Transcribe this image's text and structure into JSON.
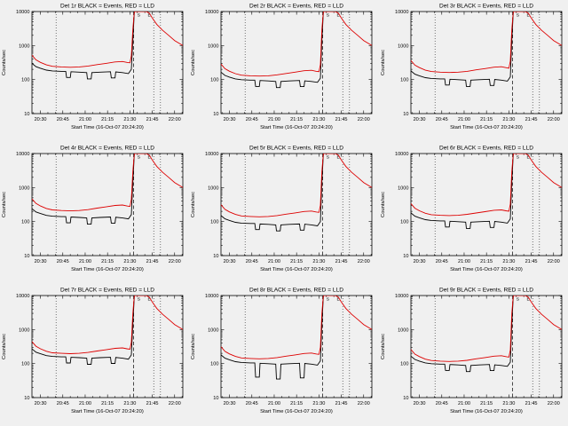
{
  "window": {
    "background": "#f0f0f0",
    "foreground": "#000000",
    "series_black": "#000000",
    "series_red": "#dd0000"
  },
  "chart_common": {
    "xlabel": "Start Time (16-Oct-07 20:24:20)",
    "ylabel": "Counts/sec",
    "xlim": [
      24.3,
      125.5
    ],
    "ylim": [
      10,
      10000
    ],
    "grid": false,
    "xticks": [
      {
        "t": 30,
        "label": "20:30"
      },
      {
        "t": 45,
        "label": "20:45"
      },
      {
        "t": 60,
        "label": "21:00"
      },
      {
        "t": 75,
        "label": "21:15"
      },
      {
        "t": 90,
        "label": "21:30"
      },
      {
        "t": 105,
        "label": "21:45"
      },
      {
        "t": 120,
        "label": "22:00"
      }
    ],
    "yticks": [
      {
        "v": 10,
        "label": "10"
      },
      {
        "v": 100,
        "label": "100"
      },
      {
        "v": 1000,
        "label": "1000"
      },
      {
        "v": 10000,
        "label": "10000"
      }
    ],
    "vlines": [
      {
        "t": 40.5,
        "style": "dotted"
      },
      {
        "t": 92.5,
        "style": "dashed"
      },
      {
        "t": 106,
        "style": "dotted"
      },
      {
        "t": 110.5,
        "style": "dotted"
      }
    ],
    "flags": [
      {
        "t": 96,
        "label": "S"
      },
      {
        "t": 103,
        "label": "E"
      }
    ],
    "x_events": [
      24.3,
      27,
      30,
      34,
      38,
      44,
      47,
      47.5,
      50,
      50.5,
      56,
      61,
      61.5,
      64,
      64.5,
      70,
      77,
      77.5,
      80,
      80.5,
      85,
      89,
      91,
      92,
      93,
      103
    ],
    "x_lld": [
      24.3,
      27,
      30,
      34,
      38,
      44,
      50,
      56,
      62,
      68,
      74,
      80,
      85,
      88,
      90,
      91,
      92,
      93,
      101,
      103,
      105,
      108,
      112,
      116,
      120,
      125.5
    ]
  },
  "chart_data": [
    {
      "type": "line",
      "title": "Det 1r BLACK = Events, RED = LLD",
      "series": [
        {
          "name": "Events",
          "color": "#000000",
          "x_ref": "x_events",
          "y": [
            300,
            240,
            215,
            190,
            180,
            175,
            175,
            115,
            115,
            170,
            165,
            160,
            105,
            105,
            160,
            165,
            170,
            112,
            112,
            168,
            160,
            150,
            200,
            1500,
            10000,
            10000
          ]
        },
        {
          "name": "LLD",
          "color": "#dd0000",
          "x_ref": "x_lld",
          "y": [
            520,
            380,
            320,
            270,
            245,
            235,
            230,
            235,
            250,
            275,
            300,
            330,
            340,
            320,
            310,
            500,
            3000,
            10000,
            10000,
            9000,
            6500,
            4200,
            2800,
            2000,
            1400,
            1000
          ]
        }
      ]
    },
    {
      "type": "line",
      "title": "Det 2r BLACK = Events, RED = LLD",
      "series": [
        {
          "name": "Events",
          "color": "#000000",
          "x_ref": "x_events",
          "y": [
            165,
            132,
            118,
            105,
            99,
            96,
            96,
            63,
            63,
            94,
            91,
            88,
            58,
            58,
            88,
            91,
            94,
            62,
            62,
            92,
            88,
            83,
            110,
            1500,
            10000,
            10000
          ]
        },
        {
          "name": "LLD",
          "color": "#dd0000",
          "x_ref": "x_lld",
          "y": [
            286,
            209,
            176,
            149,
            135,
            129,
            127,
            129,
            138,
            151,
            165,
            182,
            187,
            176,
            171,
            275,
            3000,
            10000,
            10000,
            9000,
            6500,
            4200,
            2800,
            2000,
            1400,
            1000
          ]
        }
      ]
    },
    {
      "type": "line",
      "title": "Det 3r BLACK = Events, RED = LLD",
      "series": [
        {
          "name": "Events",
          "color": "#000000",
          "x_ref": "x_events",
          "y": [
            180,
            144,
            129,
            114,
            108,
            105,
            105,
            69,
            69,
            102,
            99,
            96,
            63,
            63,
            96,
            99,
            102,
            67,
            67,
            101,
            96,
            90,
            120,
            1500,
            10000,
            10000
          ]
        },
        {
          "name": "LLD",
          "color": "#dd0000",
          "x_ref": "x_lld",
          "y": [
            364,
            266,
            224,
            189,
            172,
            165,
            161,
            165,
            175,
            193,
            210,
            231,
            238,
            224,
            217,
            350,
            3000,
            10000,
            10000,
            9000,
            6500,
            4200,
            2800,
            2000,
            1400,
            1000
          ]
        }
      ]
    },
    {
      "type": "line",
      "title": "Det 4r BLACK = Events, RED = LLD",
      "series": [
        {
          "name": "Events",
          "color": "#000000",
          "x_ref": "x_events",
          "y": [
            240,
            192,
            172,
            152,
            144,
            140,
            140,
            92,
            92,
            136,
            132,
            128,
            84,
            84,
            128,
            132,
            136,
            90,
            90,
            134,
            128,
            120,
            160,
            1500,
            10000,
            10000
          ]
        },
        {
          "name": "LLD",
          "color": "#dd0000",
          "x_ref": "x_lld",
          "y": [
            468,
            342,
            288,
            243,
            221,
            212,
            207,
            212,
            225,
            248,
            270,
            297,
            306,
            288,
            279,
            450,
            3000,
            10000,
            10000,
            9000,
            6500,
            4200,
            2800,
            2000,
            1400,
            1000
          ]
        }
      ]
    },
    {
      "type": "line",
      "title": "Det 5r BLACK = Events, RED = LLD",
      "series": [
        {
          "name": "Events",
          "color": "#000000",
          "x_ref": "x_events",
          "y": [
            150,
            120,
            108,
            95,
            90,
            88,
            88,
            58,
            58,
            85,
            83,
            80,
            53,
            53,
            80,
            83,
            85,
            56,
            56,
            84,
            80,
            75,
            100,
            1500,
            10000,
            10000
          ]
        },
        {
          "name": "LLD",
          "color": "#dd0000",
          "x_ref": "x_lld",
          "y": [
            312,
            228,
            192,
            162,
            147,
            141,
            138,
            141,
            150,
            165,
            180,
            198,
            204,
            192,
            186,
            300,
            3000,
            10000,
            10000,
            9000,
            6500,
            4200,
            2800,
            2000,
            1400,
            1000
          ]
        }
      ]
    },
    {
      "type": "line",
      "title": "Det 6r BLACK = Events, RED = LLD",
      "series": [
        {
          "name": "Events",
          "color": "#000000",
          "x_ref": "x_events",
          "y": [
            180,
            144,
            129,
            114,
            108,
            105,
            105,
            69,
            69,
            102,
            99,
            96,
            63,
            63,
            96,
            99,
            102,
            67,
            67,
            101,
            96,
            90,
            120,
            1500,
            10000,
            10000
          ]
        },
        {
          "name": "LLD",
          "color": "#dd0000",
          "x_ref": "x_lld",
          "y": [
            338,
            247,
            208,
            176,
            159,
            153,
            150,
            153,
            163,
            179,
            195,
            215,
            221,
            208,
            202,
            325,
            3000,
            10000,
            10000,
            9000,
            6500,
            4200,
            2800,
            2000,
            1400,
            1000
          ]
        }
      ]
    },
    {
      "type": "line",
      "title": "Det 7r BLACK = Events, RED = LLD",
      "series": [
        {
          "name": "Events",
          "color": "#000000",
          "x_ref": "x_events",
          "y": [
            270,
            216,
            194,
            171,
            162,
            158,
            158,
            104,
            104,
            153,
            149,
            144,
            95,
            95,
            144,
            149,
            153,
            101,
            101,
            151,
            144,
            135,
            180,
            1500,
            10000,
            10000
          ]
        },
        {
          "name": "LLD",
          "color": "#dd0000",
          "x_ref": "x_lld",
          "y": [
            442,
            323,
            272,
            230,
            208,
            200,
            196,
            200,
            213,
            234,
            255,
            281,
            289,
            272,
            264,
            425,
            3000,
            10000,
            10000,
            9000,
            6500,
            4200,
            2800,
            2000,
            1400,
            1000
          ]
        }
      ]
    },
    {
      "type": "line",
      "title": "Det 8r BLACK = Events, RED = LLD",
      "series": [
        {
          "name": "Events",
          "color": "#000000",
          "x_ref": "x_events",
          "y": [
            180,
            144,
            129,
            114,
            108,
            105,
            105,
            40,
            40,
            102,
            99,
            96,
            35,
            35,
            96,
            99,
            102,
            38,
            38,
            101,
            96,
            90,
            120,
            1500,
            10000,
            10000
          ]
        },
        {
          "name": "LLD",
          "color": "#dd0000",
          "x_ref": "x_lld",
          "y": [
            312,
            228,
            192,
            162,
            147,
            141,
            138,
            141,
            150,
            165,
            180,
            198,
            204,
            192,
            186,
            300,
            3000,
            10000,
            10000,
            9000,
            6500,
            4200,
            2800,
            2000,
            1400,
            1000
          ]
        }
      ]
    },
    {
      "type": "line",
      "title": "Det 9r BLACK = Events, RED = LLD",
      "series": [
        {
          "name": "Events",
          "color": "#000000",
          "x_ref": "x_events",
          "y": [
            165,
            132,
            118,
            105,
            99,
            96,
            96,
            63,
            63,
            94,
            91,
            88,
            58,
            58,
            88,
            91,
            94,
            62,
            62,
            92,
            88,
            83,
            110,
            1500,
            10000,
            10000
          ]
        },
        {
          "name": "LLD",
          "color": "#dd0000",
          "x_ref": "x_lld",
          "y": [
            260,
            190,
            160,
            135,
            123,
            118,
            115,
            118,
            125,
            138,
            150,
            165,
            170,
            160,
            155,
            250,
            3000,
            10000,
            10000,
            9000,
            6500,
            4200,
            2800,
            2000,
            1400,
            1000
          ]
        }
      ]
    }
  ]
}
